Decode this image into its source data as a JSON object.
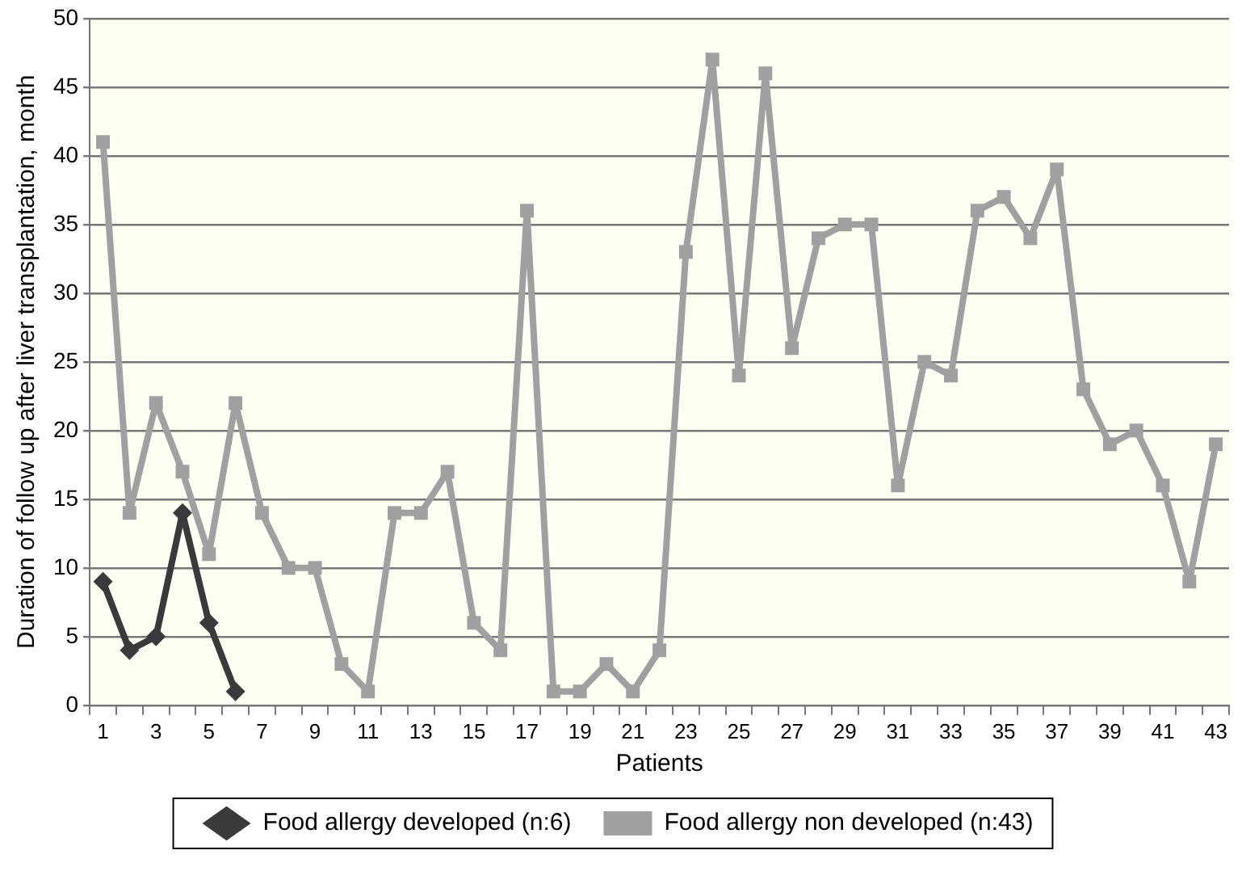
{
  "chart_data": {
    "type": "line",
    "xlabel": "Patients",
    "ylabel": "Duration of follow up after liver transplantation, month",
    "x": [
      1,
      2,
      3,
      4,
      5,
      6,
      7,
      8,
      9,
      10,
      11,
      12,
      13,
      14,
      15,
      16,
      17,
      18,
      19,
      20,
      21,
      22,
      23,
      24,
      25,
      26,
      27,
      28,
      29,
      30,
      31,
      32,
      33,
      34,
      35,
      36,
      37,
      38,
      39,
      40,
      41,
      42,
      43
    ],
    "series": [
      {
        "name": "Food allergy developed (n:6)",
        "color": "#3a3a3a",
        "marker": "diamond",
        "values": [
          9,
          4,
          5,
          14,
          6,
          1,
          null,
          null,
          null,
          null,
          null,
          null,
          null,
          null,
          null,
          null,
          null,
          null,
          null,
          null,
          null,
          null,
          null,
          null,
          null,
          null,
          null,
          null,
          null,
          null,
          null,
          null,
          null,
          null,
          null,
          null,
          null,
          null,
          null,
          null,
          null,
          null,
          null
        ]
      },
      {
        "name": "Food allergy non developed (n:43)",
        "color": "#a0a0a0",
        "marker": "square",
        "values": [
          41,
          14,
          22,
          17,
          11,
          22,
          14,
          10,
          10,
          3,
          1,
          14,
          14,
          17,
          6,
          4,
          36,
          1,
          1,
          3,
          1,
          4,
          33,
          47,
          24,
          46,
          26,
          34,
          35,
          35,
          16,
          25,
          24,
          36,
          37,
          34,
          39,
          23,
          19,
          20,
          16,
          9,
          19
        ]
      }
    ],
    "xlim": [
      0.5,
      43.5
    ],
    "xticks": [
      {
        "value": 0.5,
        "label": null
      },
      1,
      {
        "value": 1.5,
        "label": null
      },
      {
        "value": 2.5,
        "label": null
      },
      3,
      {
        "value": 3.5,
        "label": null
      },
      {
        "value": 4.5,
        "label": null
      },
      5,
      {
        "value": 5.5,
        "label": null
      },
      {
        "value": 6.5,
        "label": null
      },
      7,
      {
        "value": 7.5,
        "label": null
      },
      {
        "value": 8.5,
        "label": null
      },
      9,
      {
        "value": 9.5,
        "label": null
      },
      {
        "value": 10.5,
        "label": null
      },
      11,
      {
        "value": 11.5,
        "label": null
      },
      {
        "value": 12.5,
        "label": null
      },
      13,
      {
        "value": 13.5,
        "label": null
      },
      {
        "value": 14.5,
        "label": null
      },
      15,
      {
        "value": 15.5,
        "label": null
      },
      {
        "value": 16.5,
        "label": null
      },
      17,
      {
        "value": 17.5,
        "label": null
      },
      {
        "value": 18.5,
        "label": null
      },
      19,
      {
        "value": 19.5,
        "label": null
      },
      {
        "value": 20.5,
        "label": null
      },
      21,
      {
        "value": 21.5,
        "label": null
      },
      {
        "value": 22.5,
        "label": null
      },
      23,
      {
        "value": 23.5,
        "label": null
      },
      {
        "value": 24.5,
        "label": null
      },
      25,
      {
        "value": 25.5,
        "label": null
      },
      {
        "value": 26.5,
        "label": null
      },
      27,
      {
        "value": 27.5,
        "label": null
      },
      {
        "value": 28.5,
        "label": null
      },
      29,
      {
        "value": 29.5,
        "label": null
      },
      {
        "value": 30.5,
        "label": null
      },
      31,
      {
        "value": 31.5,
        "label": null
      },
      {
        "value": 32.5,
        "label": null
      },
      33,
      {
        "value": 33.5,
        "label": null
      },
      {
        "value": 34.5,
        "label": null
      },
      35,
      {
        "value": 35.5,
        "label": null
      },
      {
        "value": 36.5,
        "label": null
      },
      37,
      {
        "value": 37.5,
        "label": null
      },
      {
        "value": 38.5,
        "label": null
      },
      39,
      {
        "value": 39.5,
        "label": null
      },
      {
        "value": 40.5,
        "label": null
      },
      41,
      {
        "value": 41.5,
        "label": null
      },
      {
        "value": 42.5,
        "label": null
      },
      43,
      {
        "value": 43.5,
        "label": null
      }
    ],
    "ylim": [
      0,
      50
    ],
    "yticks": [
      0,
      5,
      10,
      15,
      20,
      25,
      30,
      35,
      40,
      45,
      50
    ],
    "grid": "y",
    "legend": "bottom",
    "line_style": "solid"
  }
}
